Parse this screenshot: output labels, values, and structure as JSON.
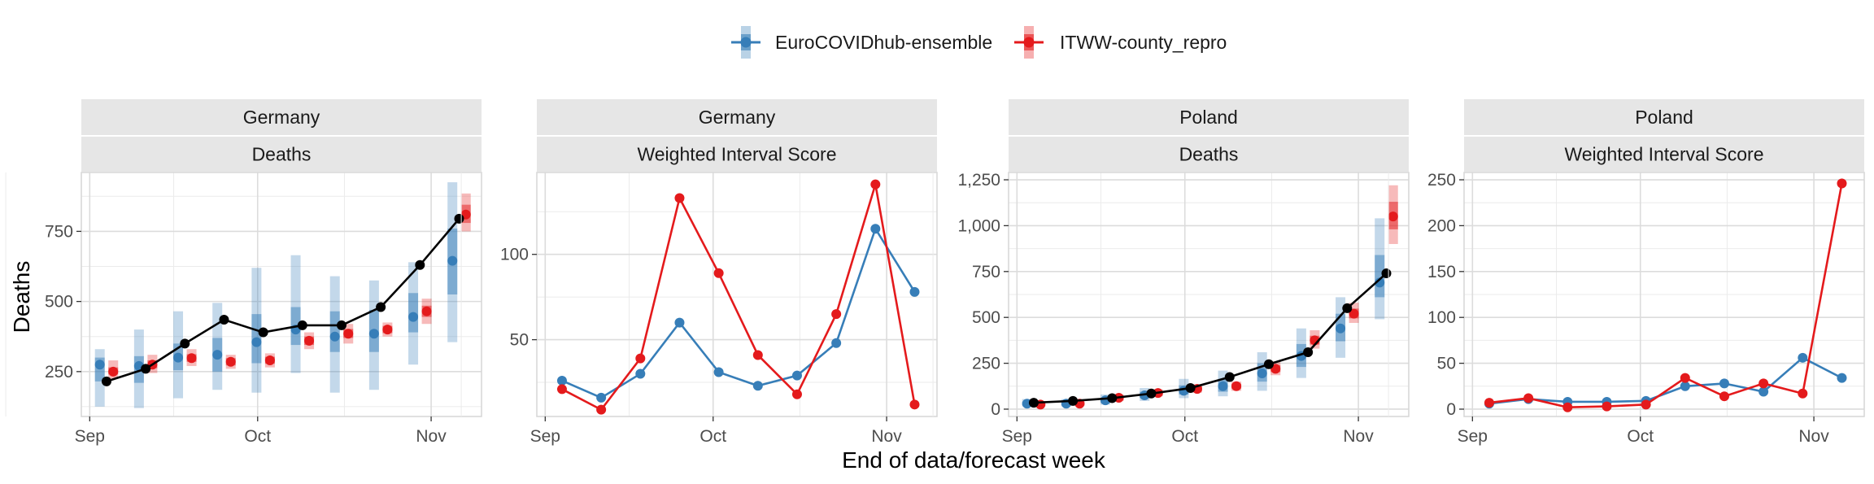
{
  "colors": {
    "series_1": "#377EB8",
    "series_2": "#E41A1C",
    "observed": "#000000",
    "strip_fill": "#E6E6E6",
    "grid_major": "#EBEBEB"
  },
  "axes": {
    "x_title": "End of data/forecast week",
    "y_title": "Deaths"
  },
  "legend": {
    "placement": "top",
    "items": [
      {
        "label": "EuroCOVIDhub-ensemble",
        "color": "#377EB8"
      },
      {
        "label": "ITWW-county_repro",
        "color": "#E41A1C"
      }
    ]
  },
  "chart_data": [
    {
      "type": "line",
      "location": "Germany",
      "target": "Deaths",
      "ylim": [
        90,
        960
      ],
      "y_ticks": [
        {
          "v": 250,
          "label": "250"
        },
        {
          "v": 500,
          "label": "500"
        },
        {
          "v": 750,
          "label": "750"
        }
      ],
      "x_ticks": [
        {
          "day": 0,
          "label": "Sep"
        },
        {
          "day": 30,
          "label": "Oct"
        },
        {
          "day": 61,
          "label": "Nov"
        }
      ],
      "observed": {
        "x": [
          3,
          10,
          17,
          24,
          31,
          38,
          45,
          52,
          59,
          66
        ],
        "y": [
          215,
          260,
          350,
          435,
          390,
          415,
          415,
          480,
          630,
          795
        ]
      },
      "forecasts": [
        {
          "series": "EuroCOVIDhub-ensemble",
          "offset": -1.2,
          "x": [
            3,
            10,
            17,
            24,
            31,
            38,
            45,
            52,
            59,
            66
          ],
          "median": [
            275,
            270,
            300,
            310,
            355,
            400,
            375,
            385,
            445,
            645
          ],
          "outer": [
            [
              125,
              330
            ],
            [
              120,
              400
            ],
            [
              155,
              465
            ],
            [
              185,
              495
            ],
            [
              175,
              620
            ],
            [
              245,
              665
            ],
            [
              175,
              590
            ],
            [
              185,
              575
            ],
            [
              275,
              640
            ],
            [
              355,
              925
            ]
          ],
          "inner": [
            [
              215,
              300
            ],
            [
              210,
              305
            ],
            [
              255,
              350
            ],
            [
              250,
              370
            ],
            [
              280,
              455
            ],
            [
              345,
              480
            ],
            [
              320,
              465
            ],
            [
              320,
              470
            ],
            [
              390,
              530
            ],
            [
              525,
              760
            ]
          ]
        },
        {
          "series": "ITWW-county_repro",
          "offset": 1.2,
          "x": [
            3,
            10,
            17,
            24,
            31,
            38,
            45,
            52,
            59,
            66
          ],
          "median": [
            250,
            275,
            298,
            285,
            290,
            360,
            385,
            400,
            465,
            810
          ],
          "outer": [
            [
              225,
              290
            ],
            [
              245,
              310
            ],
            [
              270,
              330
            ],
            [
              260,
              310
            ],
            [
              265,
              315
            ],
            [
              330,
              390
            ],
            [
              350,
              420
            ],
            [
              375,
              425
            ],
            [
              420,
              510
            ],
            [
              750,
              885
            ]
          ],
          "inner": [
            [
              240,
              265
            ],
            [
              262,
              290
            ],
            [
              285,
              312
            ],
            [
              272,
              298
            ],
            [
              278,
              303
            ],
            [
              345,
              375
            ],
            [
              370,
              402
            ],
            [
              387,
              413
            ],
            [
              445,
              485
            ],
            [
              780,
              845
            ]
          ]
        }
      ]
    },
    {
      "type": "line",
      "location": "Germany",
      "target": "Weighted Interval Score",
      "ylim": [
        5,
        148
      ],
      "y_ticks": [
        {
          "v": 50,
          "label": "50"
        },
        {
          "v": 100,
          "label": "100"
        }
      ],
      "x_ticks": [
        {
          "day": 0,
          "label": "Sep"
        },
        {
          "day": 30,
          "label": "Oct"
        },
        {
          "day": 61,
          "label": "Nov"
        }
      ],
      "series": [
        {
          "name": "EuroCOVIDhub-ensemble",
          "x": [
            3,
            10,
            17,
            24,
            31,
            38,
            45,
            52,
            59,
            66
          ],
          "y": [
            26,
            16,
            30,
            60,
            31,
            23,
            29,
            48,
            115,
            78
          ]
        },
        {
          "name": "ITWW-county_repro",
          "x": [
            3,
            10,
            17,
            24,
            31,
            38,
            45,
            52,
            59,
            66
          ],
          "y": [
            21,
            9,
            39,
            133,
            89,
            41,
            18,
            65,
            141,
            12
          ]
        }
      ]
    },
    {
      "type": "line",
      "location": "Poland",
      "target": "Deaths",
      "ylim": [
        -40,
        1290
      ],
      "y_ticks": [
        {
          "v": 0,
          "label": "0"
        },
        {
          "v": 250,
          "label": "250"
        },
        {
          "v": 500,
          "label": "500"
        },
        {
          "v": 750,
          "label": "750"
        },
        {
          "v": 1000,
          "label": "1,000"
        },
        {
          "v": 1250,
          "label": "1,250"
        }
      ],
      "x_ticks": [
        {
          "day": 0,
          "label": "Sep"
        },
        {
          "day": 30,
          "label": "Oct"
        },
        {
          "day": 61,
          "label": "Nov"
        }
      ],
      "observed": {
        "x": [
          3,
          10,
          17,
          24,
          31,
          38,
          45,
          52,
          59,
          66
        ],
        "y": [
          35,
          45,
          60,
          85,
          115,
          175,
          245,
          310,
          550,
          740
        ]
      },
      "forecasts": [
        {
          "series": "EuroCOVIDhub-ensemble",
          "offset": -1.2,
          "x": [
            3,
            10,
            17,
            24,
            31,
            38,
            45,
            52,
            59,
            66
          ],
          "median": [
            30,
            30,
            48,
            75,
            100,
            125,
            195,
            290,
            440,
            690
          ],
          "outer": [
            [
              15,
              55
            ],
            [
              15,
              55
            ],
            [
              25,
              80
            ],
            [
              45,
              115
            ],
            [
              60,
              165
            ],
            [
              70,
              210
            ],
            [
              100,
              310
            ],
            [
              170,
              440
            ],
            [
              280,
              610
            ],
            [
              490,
              1040
            ]
          ],
          "inner": [
            [
              22,
              40
            ],
            [
              22,
              40
            ],
            [
              35,
              62
            ],
            [
              60,
              95
            ],
            [
              80,
              130
            ],
            [
              95,
              165
            ],
            [
              150,
              250
            ],
            [
              230,
              355
            ],
            [
              370,
              520
            ],
            [
              610,
              840
            ]
          ]
        },
        {
          "series": "ITWW-county_repro",
          "offset": 1.2,
          "x": [
            3,
            10,
            17,
            24,
            31,
            38,
            45,
            52,
            59,
            66
          ],
          "median": [
            25,
            30,
            62,
            88,
            110,
            125,
            220,
            375,
            520,
            1050
          ],
          "outer": [
            [
              15,
              38
            ],
            [
              18,
              45
            ],
            [
              45,
              80
            ],
            [
              70,
              108
            ],
            [
              90,
              135
            ],
            [
              100,
              150
            ],
            [
              185,
              260
            ],
            [
              330,
              430
            ],
            [
              470,
              580
            ],
            [
              900,
              1220
            ]
          ],
          "inner": [
            [
              20,
              32
            ],
            [
              24,
              38
            ],
            [
              53,
              72
            ],
            [
              79,
              98
            ],
            [
              100,
              122
            ],
            [
              112,
              138
            ],
            [
              202,
              240
            ],
            [
              352,
              400
            ],
            [
              495,
              548
            ],
            [
              980,
              1130
            ]
          ]
        }
      ]
    },
    {
      "type": "line",
      "location": "Poland",
      "target": "Weighted Interval Score",
      "ylim": [
        -8,
        258
      ],
      "y_ticks": [
        {
          "v": 0,
          "label": "0"
        },
        {
          "v": 50,
          "label": "50"
        },
        {
          "v": 100,
          "label": "100"
        },
        {
          "v": 150,
          "label": "150"
        },
        {
          "v": 200,
          "label": "200"
        },
        {
          "v": 250,
          "label": "250"
        }
      ],
      "x_ticks": [
        {
          "day": 0,
          "label": "Sep"
        },
        {
          "day": 30,
          "label": "Oct"
        },
        {
          "day": 61,
          "label": "Nov"
        }
      ],
      "series": [
        {
          "name": "EuroCOVIDhub-ensemble",
          "x": [
            3,
            10,
            17,
            24,
            31,
            38,
            45,
            52,
            59,
            66
          ],
          "y": [
            6,
            11,
            8,
            8,
            9,
            25,
            28,
            19,
            56,
            34
          ]
        },
        {
          "name": "ITWW-county_repro",
          "x": [
            3,
            10,
            17,
            24,
            31,
            38,
            45,
            52,
            59,
            66
          ],
          "y": [
            7,
            12,
            2,
            3,
            5,
            34,
            14,
            28,
            17,
            246
          ]
        }
      ]
    }
  ]
}
